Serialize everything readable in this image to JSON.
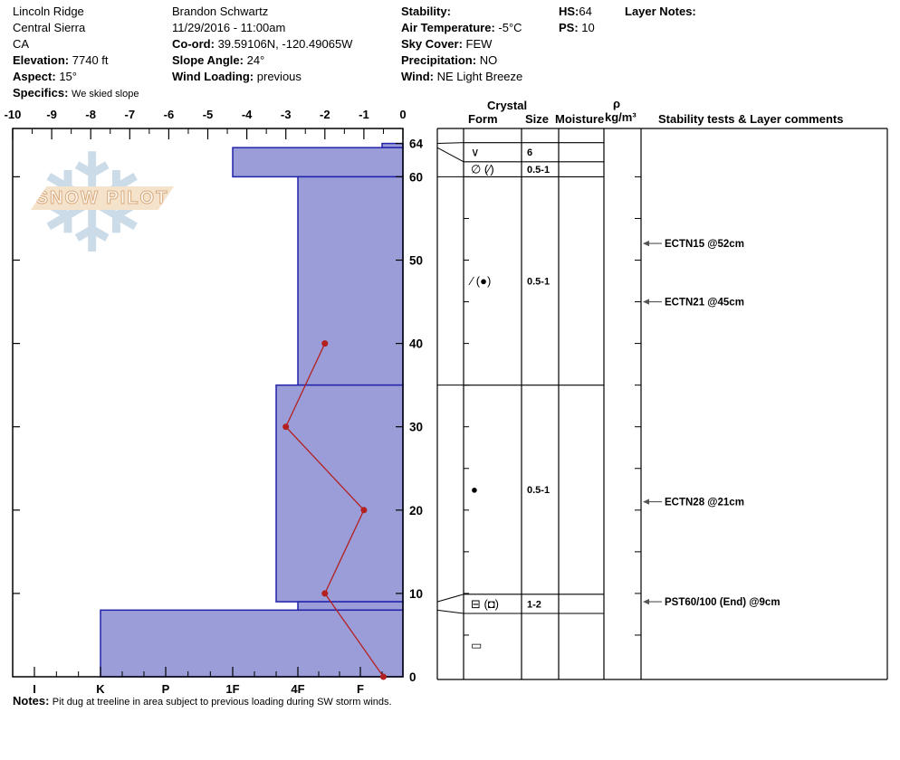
{
  "header": {
    "location": {
      "name": "Lincoln Ridge",
      "region": "Central Sierra",
      "state": "CA",
      "elevation_label": "Elevation:",
      "elevation": "7740 ft",
      "aspect_label": "Aspect:",
      "aspect": "15°",
      "specifics_label": "Specifics:",
      "specifics": "We skied slope"
    },
    "observer": {
      "name": "Brandon Schwartz",
      "datetime": "11/29/2016 - 11:00am",
      "coord_label": "Co-ord:",
      "coord": "39.59106N, -120.49065W",
      "slope_angle_label": "Slope Angle:",
      "slope_angle": "24°",
      "wind_loading_label": "Wind Loading:",
      "wind_loading": "previous"
    },
    "conditions": {
      "stability_label": "Stability:",
      "stability": "",
      "air_temp_label": "Air Temperature:",
      "air_temp": "-5°C",
      "sky_label": "Sky Cover:",
      "sky": "FEW",
      "precip_label": "Precipitation:",
      "precip": "NO",
      "wind_label": "Wind:",
      "wind": "NE Light Breeze"
    },
    "totals": {
      "hs_label": "HS:",
      "hs": "64",
      "ps_label": "PS:",
      "ps": "10"
    },
    "layer_notes_label": "Layer Notes:"
  },
  "watermark": {
    "text": "SNOW PILOT",
    "icon": "snowflake-icon",
    "glyph": "❄"
  },
  "table_headers": {
    "crystal": "Crystal",
    "form": "Form",
    "size": "Size",
    "moisture": "Moisture",
    "rho": "ρ",
    "rho_units": "kg/m³",
    "tests": "Stability tests & Layer comments"
  },
  "notes": {
    "label": "Notes:",
    "text": "Pit dug at treeline in area subject to previous loading during SW storm winds."
  },
  "chart_data": {
    "type": "bar",
    "subtype": "snow-profile-with-temperature-line",
    "depth_axis": {
      "unit": "cm",
      "side": "right",
      "range": [
        0,
        65.8
      ],
      "tick_labels": [
        64,
        60,
        50,
        40,
        30,
        20,
        10,
        0
      ],
      "edge_ticks": [
        10,
        20,
        30,
        40,
        50,
        60,
        64
      ]
    },
    "temperature_axis": {
      "unit": "°C",
      "position": "top",
      "range": [
        -10,
        0
      ],
      "major_ticks": [
        -10,
        -9,
        -8,
        -7,
        -6,
        -5,
        -4,
        -3,
        -2,
        -1,
        0
      ]
    },
    "hardness_axis": {
      "position": "bottom",
      "categories": [
        "I",
        "K",
        "P",
        "1F",
        "4F",
        "F"
      ],
      "note": "hand hardness, harder to the left"
    },
    "layers": [
      {
        "top_cm": 64,
        "bottom_cm": 63.5,
        "hardness": "F-",
        "form_glyph": "∨",
        "form_icon": "surface-hoar-icon",
        "grain_size_mm": "6",
        "row_top_cm": 64.1,
        "row_bottom_cm": 61.8
      },
      {
        "top_cm": 63.5,
        "bottom_cm": 60,
        "hardness": "1F",
        "form_glyph": "∅ (∕)",
        "form_icon": "decomposing-new-snow-icon",
        "grain_size_mm": "0.5-1",
        "row_top_cm": 61.8,
        "row_bottom_cm": 60
      },
      {
        "top_cm": 60,
        "bottom_cm": 35,
        "hardness": "4F",
        "form_glyph": "∕ (●)",
        "form_icon": "decomposing-rounds-icon",
        "grain_size_mm": "0.5-1",
        "row_top_cm": 60,
        "row_bottom_cm": 35
      },
      {
        "top_cm": 35,
        "bottom_cm": 9,
        "hardness": "4F+",
        "form_glyph": "●",
        "form_icon": "rounded-grains-icon",
        "grain_size_mm": "0.5-1",
        "row_top_cm": 35,
        "row_bottom_cm": 9.9
      },
      {
        "top_cm": 9,
        "bottom_cm": 8,
        "hardness": "4F",
        "form_glyph": "⊟ (◘)",
        "form_icon": "facets-icon",
        "grain_size_mm": "1-2",
        "row_top_cm": 9.9,
        "row_bottom_cm": 7.6
      },
      {
        "top_cm": 8,
        "bottom_cm": 0,
        "hardness": "K",
        "form_glyph": "▭",
        "form_icon": "melt-crust-icon",
        "grain_size_mm": "",
        "row_top_cm": 7.6,
        "row_bottom_cm": 0
      }
    ],
    "temperature_profile": {
      "series": "snow temperature",
      "points": [
        {
          "depth_cm": 40,
          "temp_c": -2
        },
        {
          "depth_cm": 30,
          "temp_c": -3
        },
        {
          "depth_cm": 20,
          "temp_c": -1
        },
        {
          "depth_cm": 10,
          "temp_c": -2
        },
        {
          "depth_cm": 0,
          "temp_c": -0.5
        }
      ]
    },
    "stability_tests": [
      {
        "label": "ECTN15 @52cm",
        "depth_cm": 52
      },
      {
        "label": "ECTN21 @45cm",
        "depth_cm": 45
      },
      {
        "label": "ECTN28 @21cm",
        "depth_cm": 21
      },
      {
        "label": "PST60/100 (End) @9cm",
        "depth_cm": 9
      }
    ],
    "colors": {
      "bar_fill": "#9b9dd9",
      "bar_border": "#2222aa",
      "temp_line": "#b32020",
      "axis": "#000000",
      "arrow": "#555555",
      "watermark_flake": "#ccdbe8",
      "watermark_banner": "#f5e2cb",
      "watermark_text_outline": "#d8a97c"
    }
  }
}
